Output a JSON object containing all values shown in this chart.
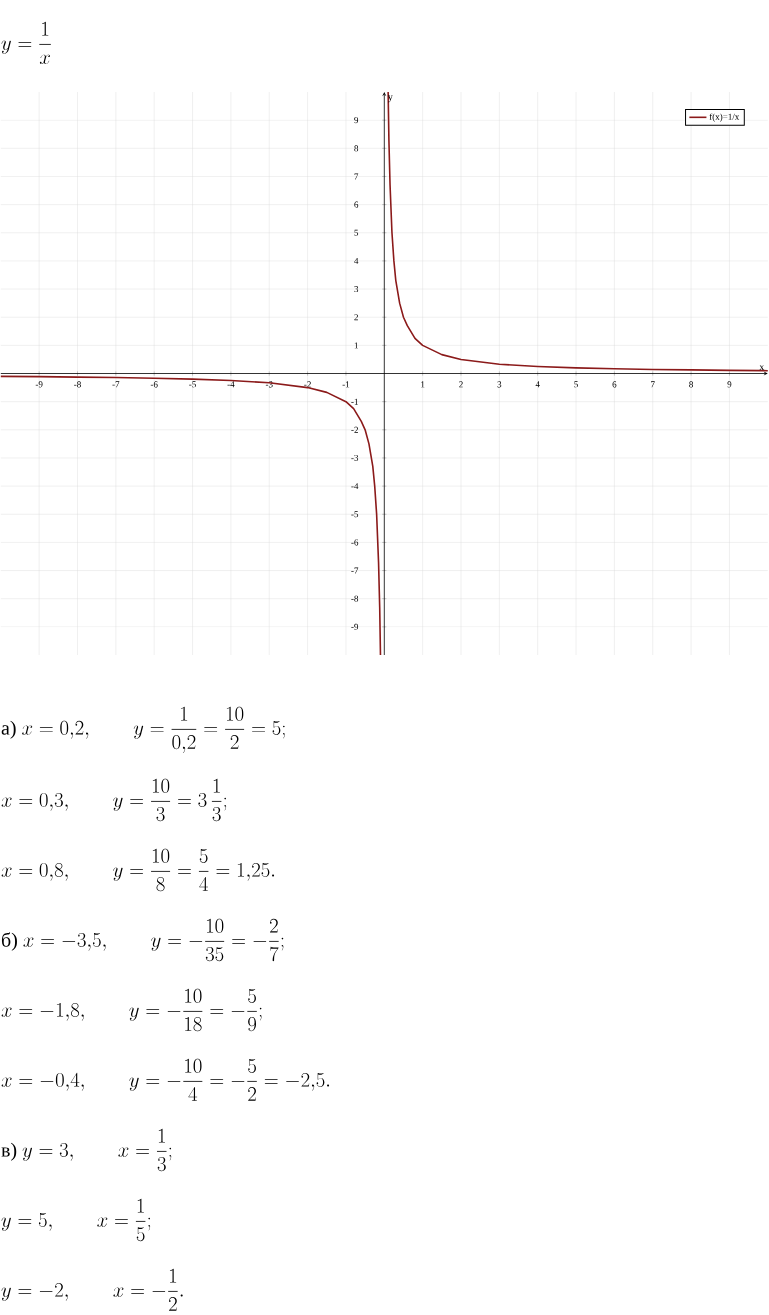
{
  "chart_data": {
    "type": "line",
    "title": "y=\\frac{1}{x}",
    "xlabel": "x",
    "ylabel": "y",
    "xlim": [
      -10,
      10
    ],
    "ylim": [
      -10,
      10
    ],
    "xticks": [
      -9,
      -8,
      -7,
      -6,
      -5,
      -4,
      -3,
      -2,
      -1,
      1,
      2,
      3,
      4,
      5,
      6,
      7,
      8,
      9
    ],
    "yticks": [
      -9,
      -8,
      -7,
      -6,
      -5,
      -4,
      -3,
      -2,
      -1,
      1,
      2,
      3,
      4,
      5,
      6,
      7,
      8,
      9
    ],
    "grid": true,
    "legend": "top right",
    "marker": "none",
    "line_style": "solid",
    "series": [
      {
        "name": "f(x)=1/x",
        "color": "#8b1a1a",
        "x": [
          0.1,
          0.12,
          0.15,
          0.2,
          0.25,
          0.3,
          0.4,
          0.5,
          0.6,
          0.8,
          1,
          1.5,
          2,
          3,
          4,
          5,
          6,
          7,
          8,
          9,
          10
        ],
        "values": [
          10,
          8.3,
          6.7,
          5,
          4,
          3.3,
          2.5,
          2,
          1.7,
          1.25,
          1,
          0.67,
          0.5,
          0.33,
          0.25,
          0.2,
          0.17,
          0.14,
          0.13,
          0.11,
          0.1
        ]
      },
      {
        "color": "#8b1a1a",
        "x": [
          -10,
          -9,
          -8,
          -7,
          -6,
          -5,
          -4,
          -3,
          -2,
          -1.5,
          -1,
          -0.8,
          -0.6,
          -0.5,
          -0.4,
          -0.3,
          -0.25,
          -0.2,
          -0.15,
          -0.12,
          -0.1
        ],
        "values": [
          -0.1,
          -0.11,
          -0.13,
          -0.14,
          -0.17,
          -0.2,
          -0.25,
          -0.33,
          -0.5,
          -0.67,
          -1,
          -1.25,
          -1.7,
          -2,
          -2.5,
          -3.3,
          -4,
          -5,
          -6.7,
          -8.3,
          -10
        ]
      }
    ],
    "annotations": [
      "\\text{а) }x=0{,}2,\\qquad y=\\frac{1}{0{,}2}=\\frac{10}{2}=5;",
      "x=0{,}3,\\qquad y=\\frac{10}{3}=3\\,\\frac{1}{3};",
      "x=0{,}8,\\qquad y=\\frac{10}{8}=\\frac{5}{4}=1{,}25.",
      "\\text{б) }x=-3{,}5,\\qquad y=-\\frac{10}{35}=-\\frac{2}{7};",
      "x=-1{,}8,\\qquad y=-\\frac{10}{18}=-\\frac{5}{9};",
      "x=-0{,}4,\\qquad y=-\\frac{10}{4}=-\\frac{5}{2}=-2{,}5.",
      "\\text{в) }y=3,\\qquad x=\\frac{1}{3};",
      "y=5,\\qquad x=\\frac{1}{5};",
      "y=-2,\\qquad x=-\\frac{1}{2}."
    ]
  }
}
